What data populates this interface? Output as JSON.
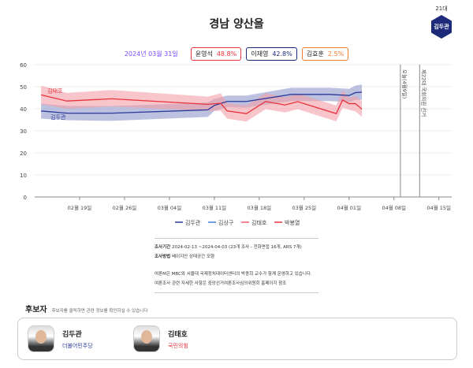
{
  "header": {
    "title": "경남 양산을",
    "badge_label": "21대",
    "badge_name": "김두관",
    "badge_color": "#1d2a7a"
  },
  "summary": {
    "date": "2024년 03월 31일",
    "items": [
      {
        "name": "윤영석",
        "value": "48.8%",
        "color": "#e8323c"
      },
      {
        "name": "이재영",
        "value": "42.8%",
        "color": "#1d2a7a"
      },
      {
        "name": "김효훈",
        "value": "2.5%",
        "color": "#f07a2a"
      }
    ]
  },
  "chart_data": {
    "type": "line",
    "ylim": [
      0,
      60
    ],
    "yticks": [
      "0",
      "10",
      "20",
      "30",
      "40",
      "50",
      "60"
    ],
    "xlim": [
      "2024-02-12",
      "2024-04-17"
    ],
    "xticks": [
      {
        "date": "2024-02-19",
        "label": "02월 19일"
      },
      {
        "date": "2024-02-26",
        "label": "02월 26일"
      },
      {
        "date": "2024-03-04",
        "label": "03월 04일"
      },
      {
        "date": "2024-03-11",
        "label": "03월 11일"
      },
      {
        "date": "2024-03-18",
        "label": "03월 18일"
      },
      {
        "date": "2024-03-25",
        "label": "03월 25일"
      },
      {
        "date": "2024-04-01",
        "label": "04월 01일"
      },
      {
        "date": "2024-04-08",
        "label": "04월 08일"
      },
      {
        "date": "2024-04-15",
        "label": "04월 15일"
      }
    ],
    "grid": true,
    "legend_position": "bottom",
    "legend": [
      {
        "name": "김두관",
        "color": "#2b3a9a"
      },
      {
        "name": "김상구",
        "color": "#3a86d6"
      },
      {
        "name": "김태호",
        "color": "#f0606a"
      },
      {
        "name": "박봉열",
        "color": "#e8323c"
      }
    ],
    "series": [
      {
        "name": "김두관",
        "color": "#2b3a9a",
        "band_color": "#8f98cc",
        "label": "김두관",
        "x": [
          "2024-02-13",
          "2024-02-17",
          "2024-02-24",
          "2024-03-10",
          "2024-03-11",
          "2024-03-13",
          "2024-03-16",
          "2024-03-23",
          "2024-03-29",
          "2024-04-01",
          "2024-04-02",
          "2024-04-03"
        ],
        "y": [
          39,
          38,
          38,
          39.5,
          41.5,
          43.3,
          43.3,
          46.5,
          46.5,
          46,
          47.3,
          47.5
        ],
        "lower": [
          35.5,
          34.8,
          34.5,
          36.3,
          39,
          40.7,
          40.5,
          43.5,
          43.5,
          43,
          44,
          44
        ],
        "upper": [
          42.3,
          41.3,
          41.2,
          42.8,
          44.5,
          46,
          46,
          49.5,
          49.5,
          49,
          50.5,
          51
        ]
      },
      {
        "name": "김태호",
        "color": "#e8323c",
        "band_color": "#f4a0a6",
        "label": "김태호",
        "x": [
          "2024-02-13",
          "2024-02-17",
          "2024-02-24",
          "2024-03-10",
          "2024-03-12",
          "2024-03-13",
          "2024-03-16",
          "2024-03-19",
          "2024-03-22",
          "2024-03-24",
          "2024-03-30",
          "2024-03-31",
          "2024-04-01",
          "2024-04-02",
          "2024-04-03"
        ],
        "y": [
          46.3,
          43.5,
          44.5,
          42,
          42.5,
          39,
          37.8,
          43.3,
          41.7,
          43.2,
          37.8,
          44,
          42.3,
          42.3,
          39.8
        ],
        "lower": [
          42,
          40,
          41,
          39,
          39,
          35.5,
          34.2,
          39.8,
          38.3,
          39.8,
          34.3,
          40.5,
          39.5,
          38.8,
          36.3
        ],
        "upper": [
          50.5,
          47.2,
          48.5,
          45.5,
          47,
          42.5,
          41.5,
          47,
          45.2,
          46.8,
          41.5,
          48.3,
          45,
          45.8,
          43.5
        ]
      }
    ],
    "vlines": [
      {
        "date": "2024-04-09",
        "label": "오늘(4월9일)"
      },
      {
        "date": "2024-04-12",
        "label": "제22대 국회의원 선거"
      }
    ]
  },
  "info": {
    "period_label": "조사기간",
    "period": "2024-02-13 ~2024-04-03 (23개 조사 - 전화면접 16개, ARS 7개)",
    "method_label": "조사방법",
    "method": "베이지안 상태공간 모형",
    "note1": "여론M은 MBC와 서울대 국제정치데이터센터의 박종희 교수가 함께 운영하고 있습니다.",
    "note2": "여론조사 관련 자세한 사항은 중앙선거여론조사심의위원회 홈페이지 참조"
  },
  "candidates": {
    "title": "후보자",
    "hint": "후보자를 클릭하면 관련 정보를 확인하실 수 있습니다",
    "items": [
      {
        "name": "김두관",
        "party": "더불어민주당",
        "color": "#2b3a9a"
      },
      {
        "name": "김태호",
        "party": "국민의힘",
        "color": "#e8323c"
      }
    ]
  }
}
